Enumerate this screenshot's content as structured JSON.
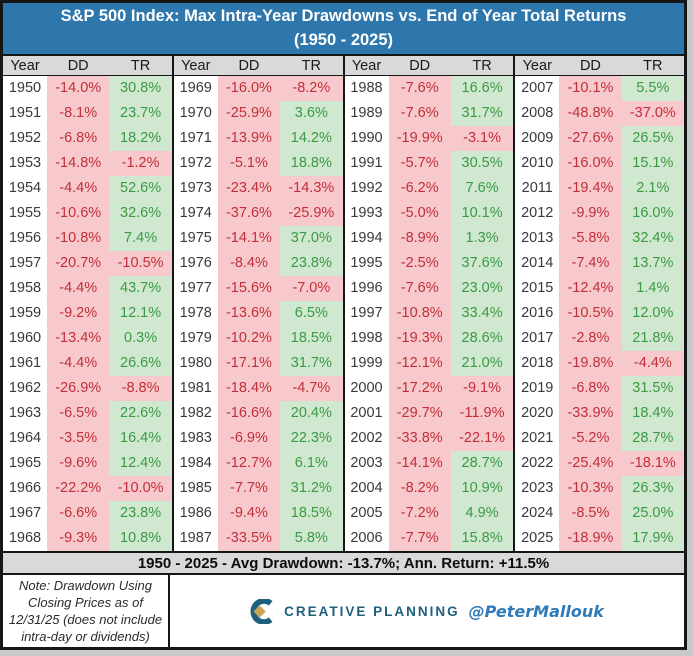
{
  "title": {
    "line1": "S&P 500 Index: Max Intra-Year Drawdowns vs. End of Year Total Returns",
    "line2": "(1950 - 2025)"
  },
  "table": {
    "column_headers": [
      "Year",
      "DD",
      "TR"
    ],
    "summary": "1950 - 2025 - Avg Drawdown: -13.7%; Ann. Return: +11.5%"
  },
  "footer": {
    "note": "Note: Drawdown Using Closing Prices as of 12/31/25 (does not include intra-day or dividends)",
    "logo_icon": "creative-planning-c-mark",
    "logo_text": "CREATIVE PLANNING",
    "handle": "@PeterMallouk"
  },
  "colors": {
    "title_bg": "#2e77ad",
    "header_bg": "#d9d9d9",
    "drawdown_bg": "#f8c9cc",
    "gain_bg": "#cfe8cf",
    "loss_text": "#c12f38",
    "gain_text": "#3b9a44",
    "logo_teal": "#1e5f7d",
    "logo_gold": "#c9a254",
    "handle_blue": "#2f7ab8"
  },
  "chart_data": {
    "type": "table",
    "title": "S&P 500 Index: Max Intra-Year Drawdowns vs. End of Year Total Returns (1950 - 2025)",
    "columns": [
      "Year",
      "Max Intra-Year Drawdown %",
      "End of Year Total Return %"
    ],
    "avg_drawdown_pct": -13.7,
    "annualized_return_pct": 11.5,
    "groups": [
      {
        "rows": [
          [
            1950,
            -14.0,
            30.8
          ],
          [
            1951,
            -8.1,
            23.7
          ],
          [
            1952,
            -6.8,
            18.2
          ],
          [
            1953,
            -14.8,
            -1.2
          ],
          [
            1954,
            -4.4,
            52.6
          ],
          [
            1955,
            -10.6,
            32.6
          ],
          [
            1956,
            -10.8,
            7.4
          ],
          [
            1957,
            -20.7,
            -10.5
          ],
          [
            1958,
            -4.4,
            43.7
          ],
          [
            1959,
            -9.2,
            12.1
          ],
          [
            1960,
            -13.4,
            0.3
          ],
          [
            1961,
            -4.4,
            26.6
          ],
          [
            1962,
            -26.9,
            -8.8
          ],
          [
            1963,
            -6.5,
            22.6
          ],
          [
            1964,
            -3.5,
            16.4
          ],
          [
            1965,
            -9.6,
            12.4
          ],
          [
            1966,
            -22.2,
            -10.0
          ],
          [
            1967,
            -6.6,
            23.8
          ],
          [
            1968,
            -9.3,
            10.8
          ]
        ]
      },
      {
        "rows": [
          [
            1969,
            -16.0,
            -8.2
          ],
          [
            1970,
            -25.9,
            3.6
          ],
          [
            1971,
            -13.9,
            14.2
          ],
          [
            1972,
            -5.1,
            18.8
          ],
          [
            1973,
            -23.4,
            -14.3
          ],
          [
            1974,
            -37.6,
            -25.9
          ],
          [
            1975,
            -14.1,
            37.0
          ],
          [
            1976,
            -8.4,
            23.8
          ],
          [
            1977,
            -15.6,
            -7.0
          ],
          [
            1978,
            -13.6,
            6.5
          ],
          [
            1979,
            -10.2,
            18.5
          ],
          [
            1980,
            -17.1,
            31.7
          ],
          [
            1981,
            -18.4,
            -4.7
          ],
          [
            1982,
            -16.6,
            20.4
          ],
          [
            1983,
            -6.9,
            22.3
          ],
          [
            1984,
            -12.7,
            6.1
          ],
          [
            1985,
            -7.7,
            31.2
          ],
          [
            1986,
            -9.4,
            18.5
          ],
          [
            1987,
            -33.5,
            5.8
          ]
        ]
      },
      {
        "rows": [
          [
            1988,
            -7.6,
            16.6
          ],
          [
            1989,
            -7.6,
            31.7
          ],
          [
            1990,
            -19.9,
            -3.1
          ],
          [
            1991,
            -5.7,
            30.5
          ],
          [
            1992,
            -6.2,
            7.6
          ],
          [
            1993,
            -5.0,
            10.1
          ],
          [
            1994,
            -8.9,
            1.3
          ],
          [
            1995,
            -2.5,
            37.6
          ],
          [
            1996,
            -7.6,
            23.0
          ],
          [
            1997,
            -10.8,
            33.4
          ],
          [
            1998,
            -19.3,
            28.6
          ],
          [
            1999,
            -12.1,
            21.0
          ],
          [
            2000,
            -17.2,
            -9.1
          ],
          [
            2001,
            -29.7,
            -11.9
          ],
          [
            2002,
            -33.8,
            -22.1
          ],
          [
            2003,
            -14.1,
            28.7
          ],
          [
            2004,
            -8.2,
            10.9
          ],
          [
            2005,
            -7.2,
            4.9
          ],
          [
            2006,
            -7.7,
            15.8
          ]
        ]
      },
      {
        "rows": [
          [
            2007,
            -10.1,
            5.5
          ],
          [
            2008,
            -48.8,
            -37.0
          ],
          [
            2009,
            -27.6,
            26.5
          ],
          [
            2010,
            -16.0,
            15.1
          ],
          [
            2011,
            -19.4,
            2.1
          ],
          [
            2012,
            -9.9,
            16.0
          ],
          [
            2013,
            -5.8,
            32.4
          ],
          [
            2014,
            -7.4,
            13.7
          ],
          [
            2015,
            -12.4,
            1.4
          ],
          [
            2016,
            -10.5,
            12.0
          ],
          [
            2017,
            -2.8,
            21.8
          ],
          [
            2018,
            -19.8,
            -4.4
          ],
          [
            2019,
            -6.8,
            31.5
          ],
          [
            2020,
            -33.9,
            18.4
          ],
          [
            2021,
            -5.2,
            28.7
          ],
          [
            2022,
            -25.4,
            -18.1
          ],
          [
            2023,
            -10.3,
            26.3
          ],
          [
            2024,
            -8.5,
            25.0
          ],
          [
            2025,
            -18.9,
            17.9
          ]
        ]
      }
    ]
  }
}
